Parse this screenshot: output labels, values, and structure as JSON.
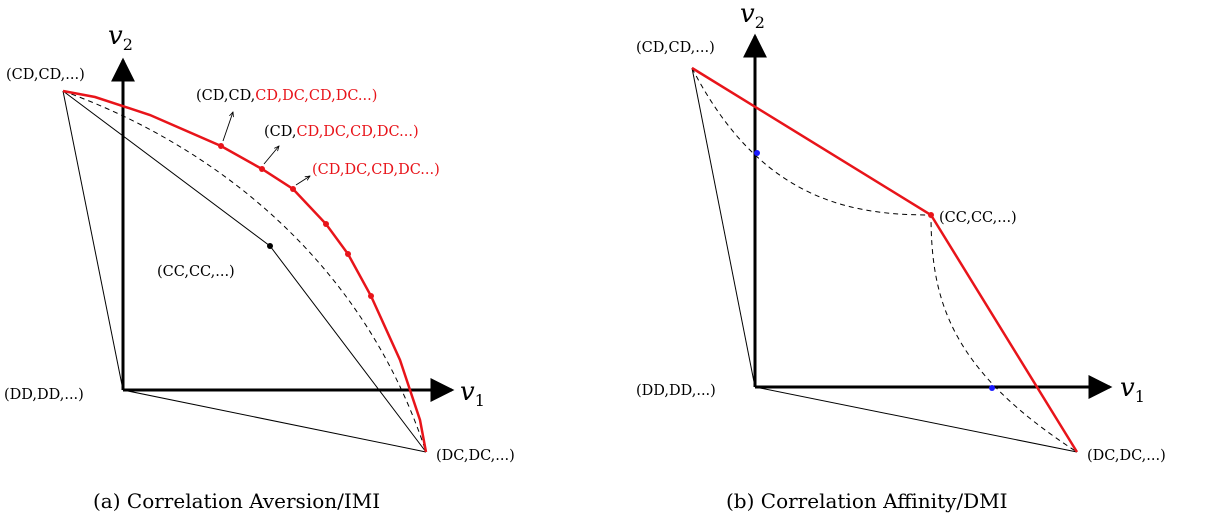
{
  "colors": {
    "pareto": "#e8141a",
    "dot_black": "#000000",
    "dot_blue": "#1a1aff",
    "line": "#000000"
  },
  "panel_a": {
    "caption": "(a) Correlation Aversion/IMI",
    "axis_x": {
      "var": "v",
      "sub": "1"
    },
    "axis_y": {
      "var": "v",
      "sub": "2"
    },
    "labels": {
      "cdcd": "(CD,CD,...)",
      "dddd": "(DD,DD,...)",
      "dcdc": "(DC,DC,...)",
      "cccc": "(CC,CC,...)",
      "seq1_black": "(CD,CD,",
      "seq1_red": "CD,DC,CD,DC...)",
      "seq2_black": "(CD,",
      "seq2_red": "CD,DC,CD,DC...)",
      "seq3_red": "(CD,DC,CD,DC...)"
    }
  },
  "panel_b": {
    "caption": "(b) Correlation Affinity/DMI",
    "axis_x": {
      "var": "v",
      "sub": "1"
    },
    "axis_y": {
      "var": "v",
      "sub": "2"
    },
    "labels": {
      "cdcd": "(CD,CD,...)",
      "dddd": "(DD,DD,...)",
      "dcdc": "(DC,DC,...)",
      "cccc": "(CC,CC,...)"
    }
  }
}
